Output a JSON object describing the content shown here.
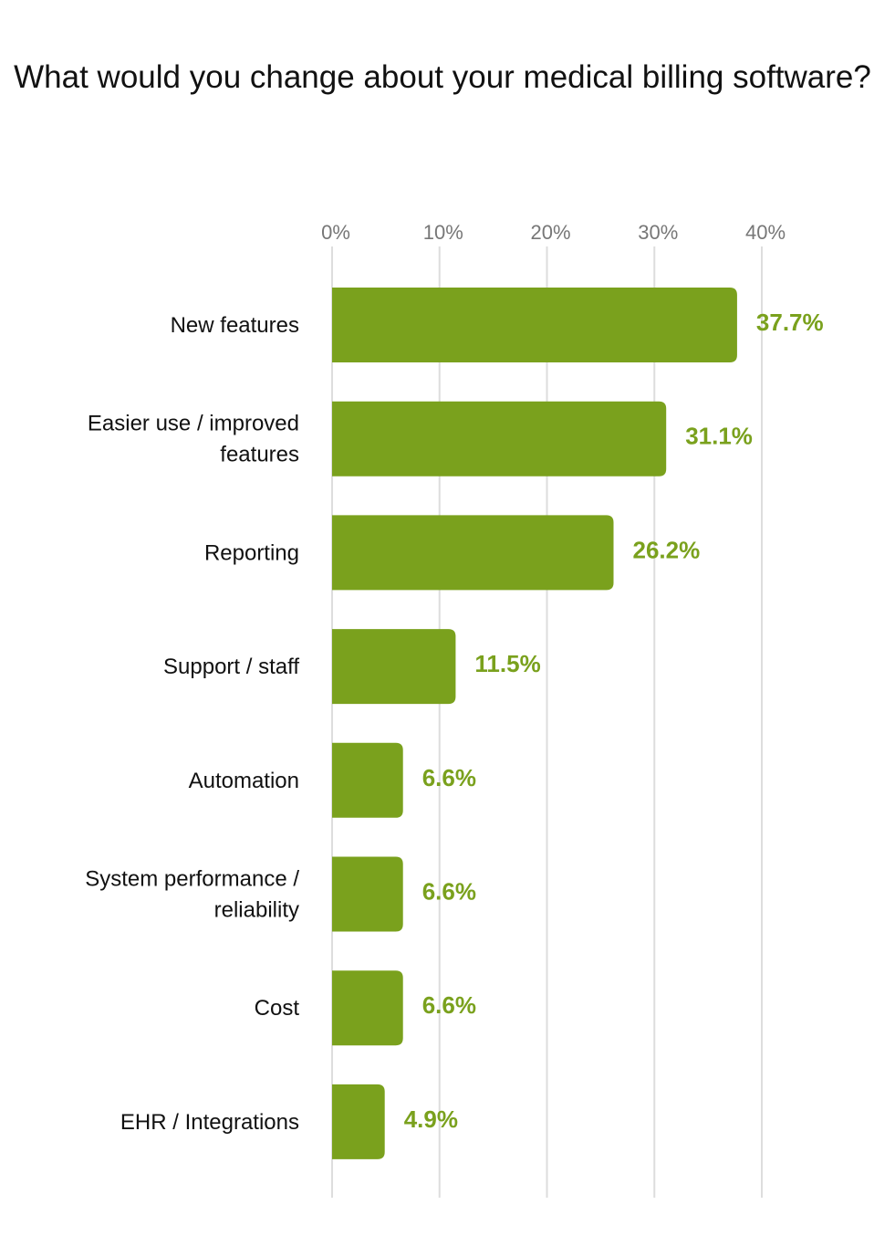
{
  "chart_data": {
    "type": "bar",
    "orientation": "horizontal",
    "title": "What would you change about your medical billing software?",
    "xlabel": "",
    "ylabel": "",
    "xlim": [
      0,
      40
    ],
    "x_ticks": [
      "0%",
      "10%",
      "20%",
      "30%",
      "40%"
    ],
    "grid": true,
    "categories": [
      [
        "New features"
      ],
      [
        "Easier use / improved",
        "features"
      ],
      [
        "Reporting"
      ],
      [
        "Support / staff"
      ],
      [
        "Automation"
      ],
      [
        "System performance /",
        "reliability"
      ],
      [
        "Cost"
      ],
      [
        "EHR / Integrations"
      ]
    ],
    "values": [
      37.7,
      31.1,
      26.2,
      11.5,
      6.6,
      6.6,
      6.6,
      4.9
    ],
    "data_labels": [
      "37.7%",
      "31.1%",
      "26.2%",
      "11.5%",
      "6.6%",
      "6.6%",
      "6.6%",
      "4.9%"
    ],
    "colors": {
      "bar": "#7aa11d",
      "label": "#7aa11d",
      "grid": "#dddddd",
      "tick": "#777777"
    }
  }
}
